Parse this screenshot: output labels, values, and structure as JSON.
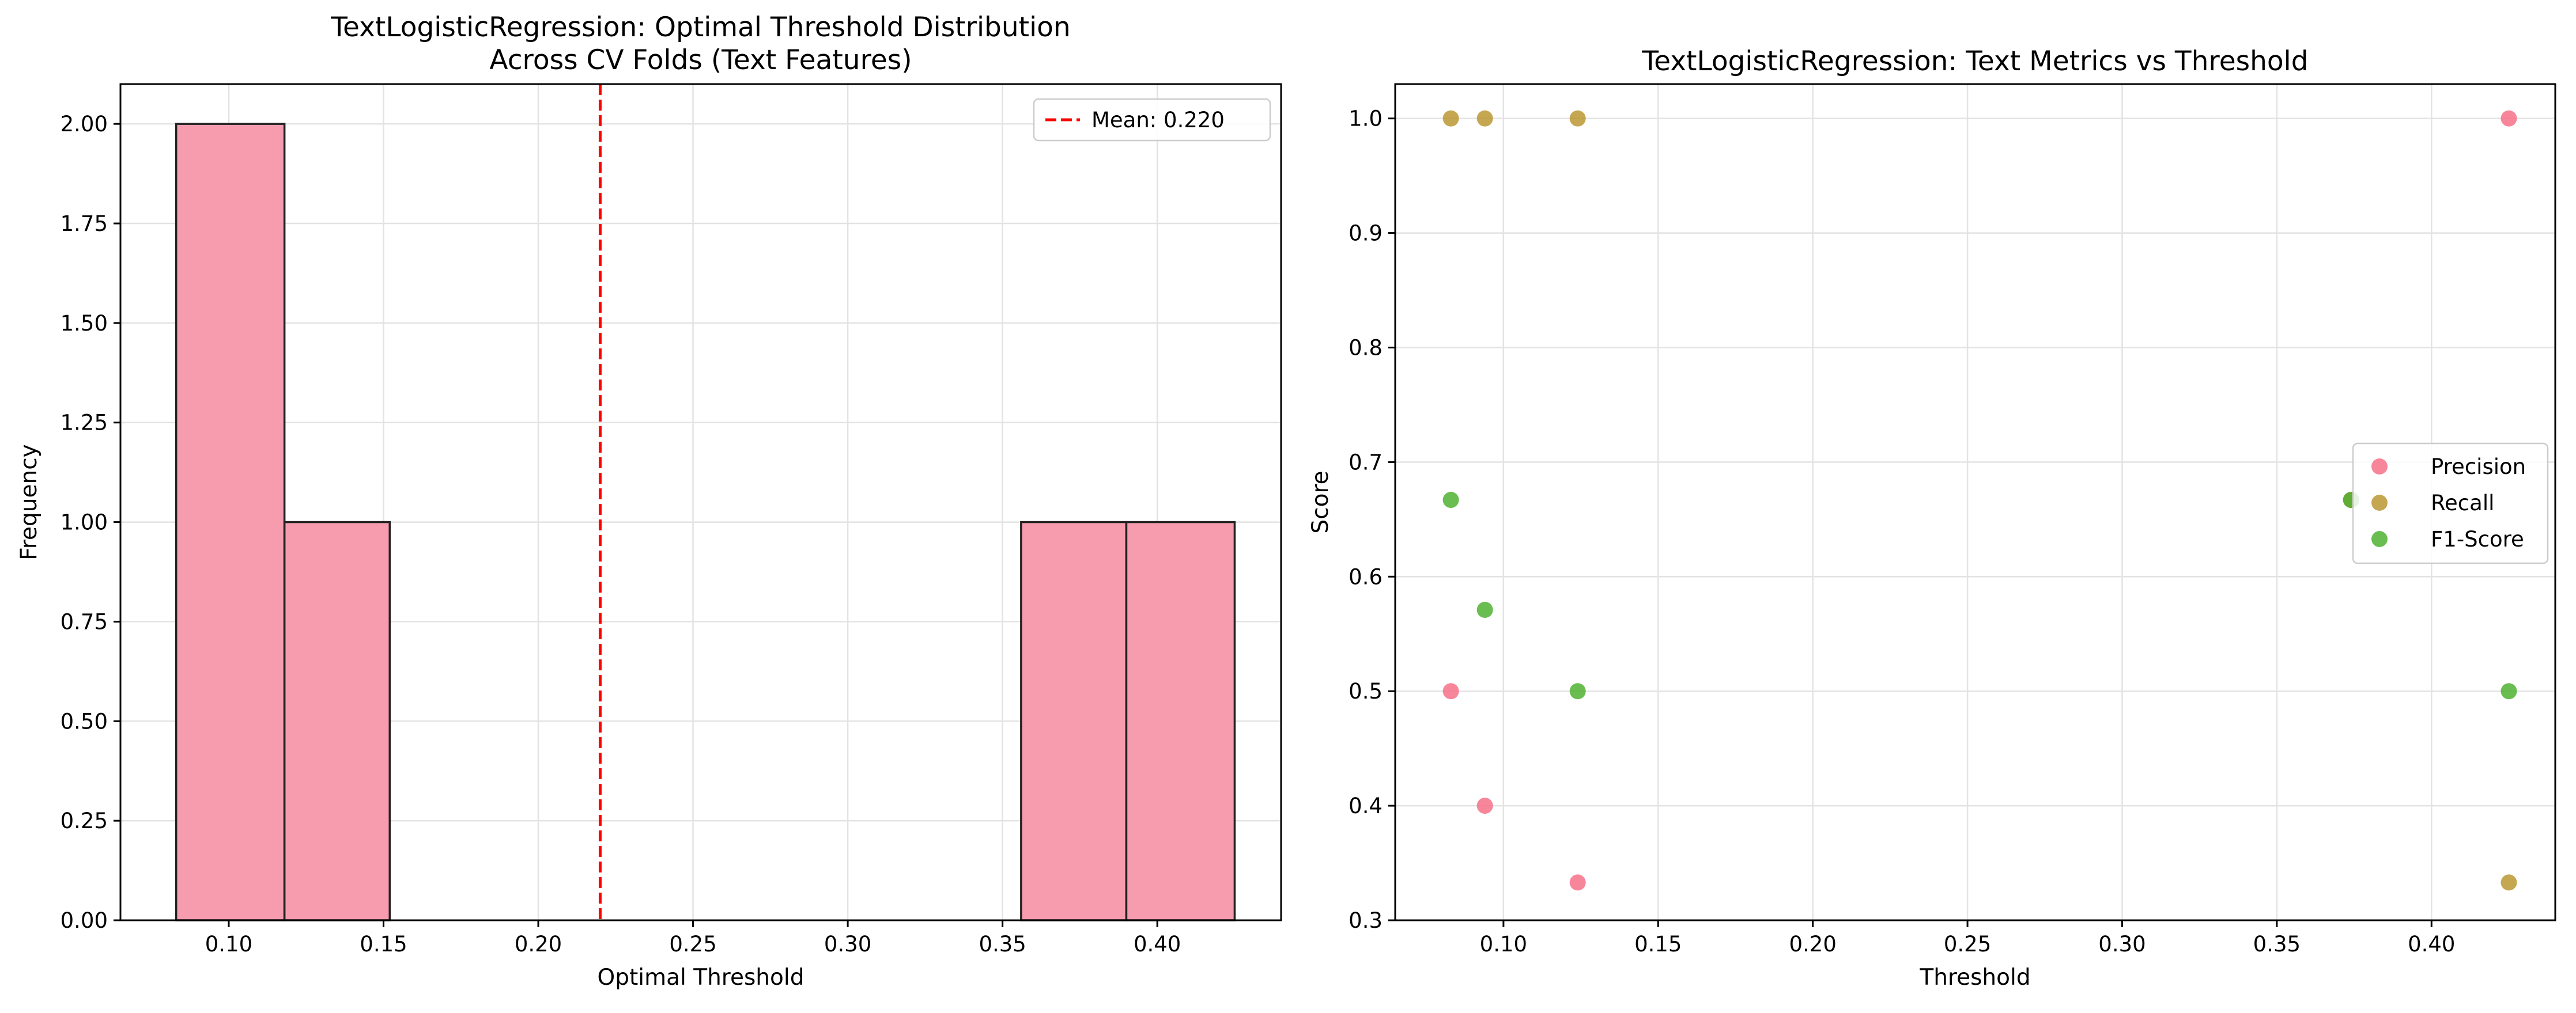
{
  "chart_data": [
    {
      "type": "histogram",
      "title": "TextLogisticRegression: Optimal Threshold Distribution\nAcross CV Folds (Text Features)",
      "xlabel": "Optimal Threshold",
      "ylabel": "Frequency",
      "xlim": [
        0.065,
        0.44
      ],
      "ylim": [
        0,
        2.1
      ],
      "grid": true,
      "bar_color": "#f79caf",
      "edge_color": "#222222",
      "bins": [
        {
          "x0": 0.083,
          "x1": 0.118,
          "count": 2
        },
        {
          "x0": 0.118,
          "x1": 0.152,
          "count": 1
        },
        {
          "x0": 0.356,
          "x1": 0.39,
          "count": 1
        },
        {
          "x0": 0.39,
          "x1": 0.425,
          "count": 1
        }
      ],
      "xticks": [
        0.1,
        0.15,
        0.2,
        0.25,
        0.3,
        0.35,
        0.4
      ],
      "xtick_labels": [
        "0.10",
        "0.15",
        "0.20",
        "0.25",
        "0.30",
        "0.35",
        "0.40"
      ],
      "yticks": [
        0.0,
        0.25,
        0.5,
        0.75,
        1.0,
        1.25,
        1.5,
        1.75,
        2.0
      ],
      "ytick_labels": [
        "0.00",
        "0.25",
        "0.50",
        "0.75",
        "1.00",
        "1.25",
        "1.50",
        "1.75",
        "2.00"
      ],
      "mean_line": {
        "value": 0.22,
        "label": "Mean: 0.220",
        "color": "#ff0000",
        "style": "dashed"
      },
      "legend": {
        "placement": "upper right",
        "entries": [
          "Mean: 0.220"
        ]
      }
    },
    {
      "type": "scatter",
      "title": "TextLogisticRegression: Text Metrics vs Threshold",
      "xlabel": "Threshold",
      "ylabel": "Score",
      "xlim": [
        0.065,
        0.44
      ],
      "ylim": [
        0.3,
        1.03
      ],
      "grid": true,
      "xticks": [
        0.1,
        0.15,
        0.2,
        0.25,
        0.3,
        0.35,
        0.4
      ],
      "xtick_labels": [
        "0.10",
        "0.15",
        "0.20",
        "0.25",
        "0.30",
        "0.35",
        "0.40"
      ],
      "yticks": [
        0.3,
        0.4,
        0.5,
        0.6,
        0.7,
        0.8,
        0.9,
        1.0
      ],
      "ytick_labels": [
        "0.3",
        "0.4",
        "0.5",
        "0.6",
        "0.7",
        "0.8",
        "0.9",
        "1.0"
      ],
      "series": [
        {
          "name": "Precision",
          "color": "#f77189",
          "points": [
            [
              0.083,
              0.5
            ],
            [
              0.094,
              0.4
            ],
            [
              0.124,
              0.333
            ],
            [
              0.374,
              0.667
            ],
            [
              0.425,
              1.0
            ]
          ]
        },
        {
          "name": "Recall",
          "color": "#bb9832",
          "points": [
            [
              0.083,
              1.0
            ],
            [
              0.094,
              1.0
            ],
            [
              0.124,
              1.0
            ],
            [
              0.374,
              0.667
            ],
            [
              0.425,
              0.333
            ]
          ]
        },
        {
          "name": "F1-Score",
          "color": "#50b131",
          "points": [
            [
              0.083,
              0.667
            ],
            [
              0.094,
              0.571
            ],
            [
              0.124,
              0.5
            ],
            [
              0.374,
              0.667
            ],
            [
              0.425,
              0.5
            ]
          ]
        }
      ],
      "legend": {
        "placement": "center right",
        "entries": [
          "Precision",
          "Recall",
          "F1-Score"
        ]
      }
    }
  ]
}
